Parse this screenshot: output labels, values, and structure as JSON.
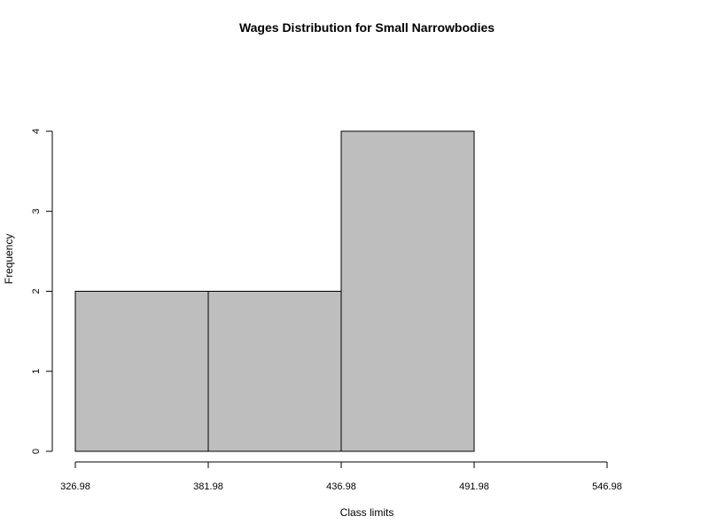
{
  "chart_data": {
    "type": "bar",
    "title": "Wages Distribution for Small Narrowbodies",
    "xlabel": "Class limits",
    "ylabel": "Frequency",
    "breaks": [
      326.98,
      381.98,
      436.98,
      491.98,
      546.98
    ],
    "x_tick_labels": [
      "326.98",
      "381.98",
      "436.98",
      "491.98",
      "546.98"
    ],
    "values": [
      2,
      2,
      4,
      0
    ],
    "y_ticks": [
      0,
      1,
      2,
      3,
      4
    ],
    "y_tick_labels": [
      "0",
      "1",
      "2",
      "3",
      "4"
    ],
    "ylim": [
      0,
      4
    ],
    "xlim": [
      326.98,
      546.98
    ],
    "grid": false,
    "legend": "none",
    "bar_fill": "#bebebe",
    "bar_stroke": "#000000"
  }
}
